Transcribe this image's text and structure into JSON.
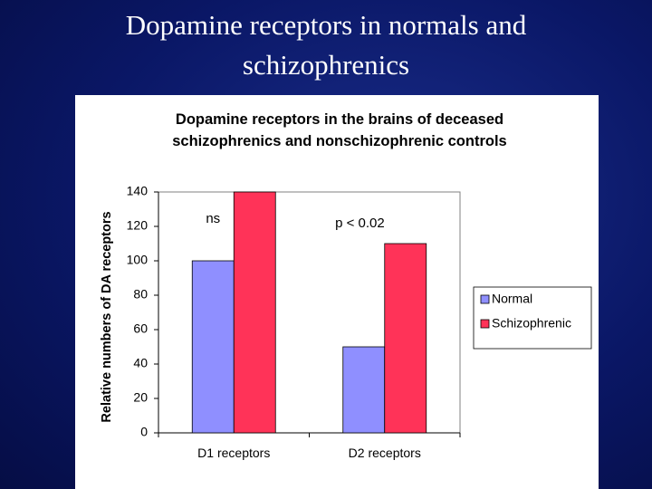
{
  "slide": {
    "title": "Dopamine receptors in normals and schizophrenics"
  },
  "chart_data": {
    "type": "bar",
    "title": "Dopamine receptors in the brains of deceased schizophrenics and nonschizophrenic controls",
    "y_label": "Relative numbers of DA receptors",
    "categories": [
      "D1 receptors",
      "D2 receptors"
    ],
    "series": [
      {
        "name": "Normal",
        "color": "#8f8fff",
        "values": [
          100,
          50
        ]
      },
      {
        "name": "Schizophrenic",
        "color": "#ff3358",
        "values": [
          140,
          110
        ]
      }
    ],
    "annotations": [
      "ns",
      "p < 0.02"
    ],
    "ylim": [
      0,
      140
    ],
    "yticks": [
      0,
      20,
      40,
      60,
      80,
      100,
      120,
      140
    ],
    "grid": false,
    "legend": "right"
  }
}
